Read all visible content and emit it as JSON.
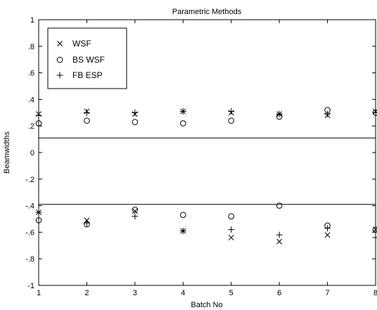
{
  "chart_data": {
    "type": "scatter",
    "title": "Parametric Methods",
    "xlabel": "Batch No",
    "ylabel": "Beamwidths",
    "xlim": [
      1,
      8
    ],
    "ylim": [
      -1,
      1
    ],
    "x_ticks": [
      1,
      2,
      3,
      4,
      5,
      6,
      7,
      8
    ],
    "y_ticks": [
      -1,
      -0.8,
      -0.6,
      -0.4,
      -0.2,
      0,
      0.2,
      0.4,
      0.6,
      0.8,
      1
    ],
    "grid": false,
    "legend_position": "top-left",
    "reference_lines": [
      0.11,
      -0.39
    ],
    "series": [
      {
        "name": "WSF",
        "marker": "x",
        "x": [
          1,
          2,
          3,
          4,
          5,
          6,
          7,
          8,
          1,
          2,
          3,
          4,
          5,
          6,
          7,
          8
        ],
        "y": [
          0.29,
          0.31,
          0.29,
          0.31,
          0.3,
          0.29,
          0.28,
          0.31,
          -0.45,
          -0.51,
          -0.44,
          -0.59,
          -0.64,
          -0.67,
          -0.62,
          -0.58
        ]
      },
      {
        "name": "BS WSF",
        "marker": "o",
        "x": [
          1,
          2,
          3,
          4,
          5,
          6,
          7,
          8,
          1,
          2,
          3,
          4,
          5,
          6,
          7,
          8
        ],
        "y": [
          0.22,
          0.24,
          0.23,
          0.22,
          0.24,
          0.27,
          0.32,
          0.3,
          -0.51,
          -0.54,
          -0.43,
          -0.47,
          -0.48,
          -0.4,
          -0.55,
          -0.58
        ]
      },
      {
        "name": "FB ESP",
        "marker": "+",
        "x": [
          1,
          2,
          3,
          4,
          5,
          6,
          7,
          8,
          1,
          2,
          3,
          4,
          5,
          6,
          7,
          8
        ],
        "y": [
          0.28,
          0.3,
          0.3,
          0.31,
          0.31,
          0.29,
          0.29,
          0.3,
          -0.45,
          -0.53,
          -0.48,
          -0.59,
          -0.58,
          -0.62,
          -0.57,
          -0.64
        ]
      }
    ]
  }
}
